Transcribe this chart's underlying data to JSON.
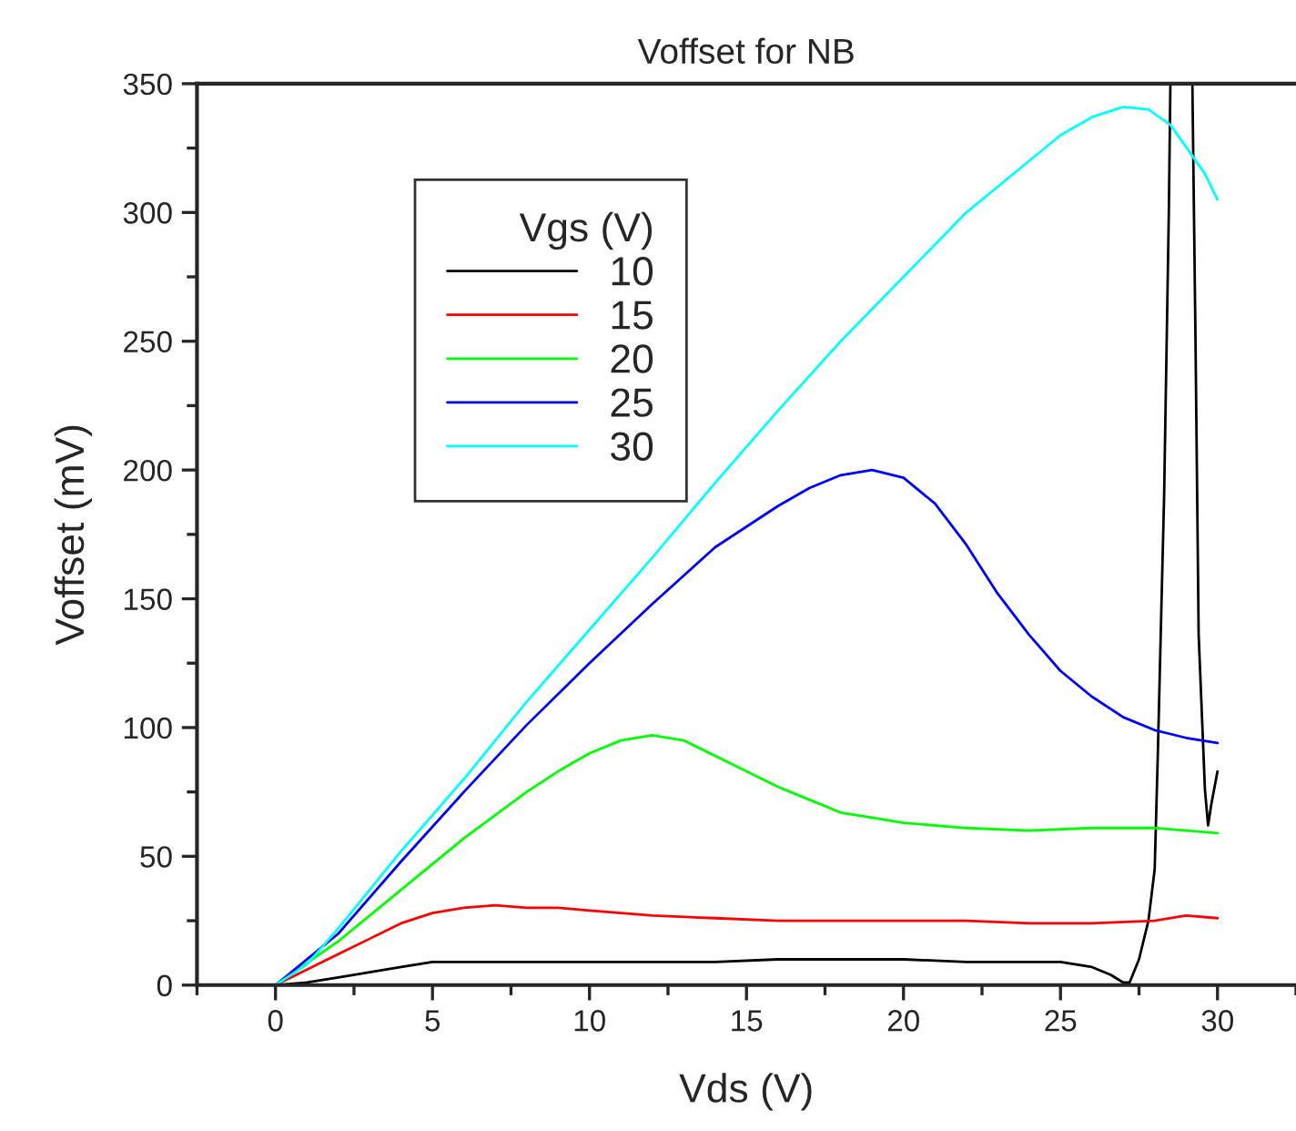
{
  "chart_data": {
    "type": "line",
    "title": "Voffset for NB",
    "xlabel": "Vds (V)",
    "ylabel": "Voffset (mV)",
    "legend_title": "Vgs (V)",
    "legend": "top left",
    "grid": false,
    "xlim": [
      -2.5,
      32.5
    ],
    "xticks": [
      0,
      5,
      10,
      15,
      20,
      25,
      30
    ],
    "ylim": [
      0,
      350
    ],
    "yticks": [
      0,
      50,
      100,
      150,
      200,
      250,
      300,
      350
    ],
    "series": [
      {
        "name": "10",
        "color": "#000000",
        "x": [
          0,
          1,
          2,
          3,
          4,
          5,
          6,
          8,
          10,
          12,
          14,
          16,
          18,
          20,
          22,
          24,
          25,
          26,
          26.6,
          27,
          27.2,
          27.5,
          27.8,
          28,
          28.1,
          28.3,
          28.45,
          28.5,
          28.9,
          29.2,
          29.3,
          29.4,
          29.6,
          29.7,
          29.8,
          30
        ],
        "values": [
          0,
          1,
          3,
          5,
          7,
          9,
          9,
          9,
          9,
          9,
          9,
          10,
          10,
          10,
          9,
          9,
          9,
          7,
          4,
          1,
          1,
          10,
          25,
          45,
          90,
          190,
          300,
          350,
          null,
          350,
          250,
          136,
          76,
          62,
          70,
          83
        ]
      },
      {
        "name": "15",
        "color": "#ff0000",
        "x": [
          0,
          1,
          2,
          3,
          4,
          5,
          6,
          7,
          8,
          9,
          10,
          11,
          12,
          14,
          16,
          18,
          20,
          22,
          24,
          26,
          28,
          29,
          30
        ],
        "values": [
          0,
          6,
          12,
          18,
          24,
          28,
          30,
          31,
          30,
          30,
          29,
          28,
          27,
          26,
          25,
          25,
          25,
          25,
          24,
          24,
          25,
          27,
          26
        ]
      },
      {
        "name": "20",
        "color": "#00ff00",
        "x": [
          0,
          2,
          4,
          6,
          8,
          9,
          10,
          11,
          12,
          13,
          14,
          15,
          16,
          17,
          18,
          19,
          20,
          22,
          24,
          26,
          28,
          30
        ],
        "values": [
          0,
          17,
          37,
          57,
          75,
          83,
          90,
          95,
          97,
          95,
          89,
          83,
          77,
          72,
          67,
          65,
          63,
          61,
          60,
          61,
          61,
          59
        ]
      },
      {
        "name": "25",
        "color": "#0000ff",
        "x": [
          0,
          2,
          4,
          6,
          8,
          10,
          12,
          14,
          16,
          17,
          18,
          19,
          20,
          21,
          22,
          23,
          24,
          25,
          26,
          27,
          28,
          29,
          30
        ],
        "values": [
          0,
          20,
          48,
          75,
          101,
          125,
          148,
          170,
          186,
          193,
          198,
          200,
          197,
          187,
          171,
          152,
          136,
          122,
          112,
          104,
          99,
          96,
          94
        ]
      },
      {
        "name": "30",
        "color": "#00ffff",
        "x": [
          0,
          1,
          2,
          3,
          4,
          5,
          6,
          8,
          10,
          12,
          14,
          16,
          18,
          20,
          22,
          24,
          25,
          26,
          27,
          27.8,
          28.5,
          29.2,
          29.6,
          30
        ],
        "values": [
          0,
          8,
          22,
          37,
          52,
          66,
          80,
          110,
          138,
          166,
          195,
          223,
          250,
          275,
          300,
          320,
          330,
          337,
          341,
          340,
          334,
          322,
          315,
          305
        ]
      }
    ]
  }
}
